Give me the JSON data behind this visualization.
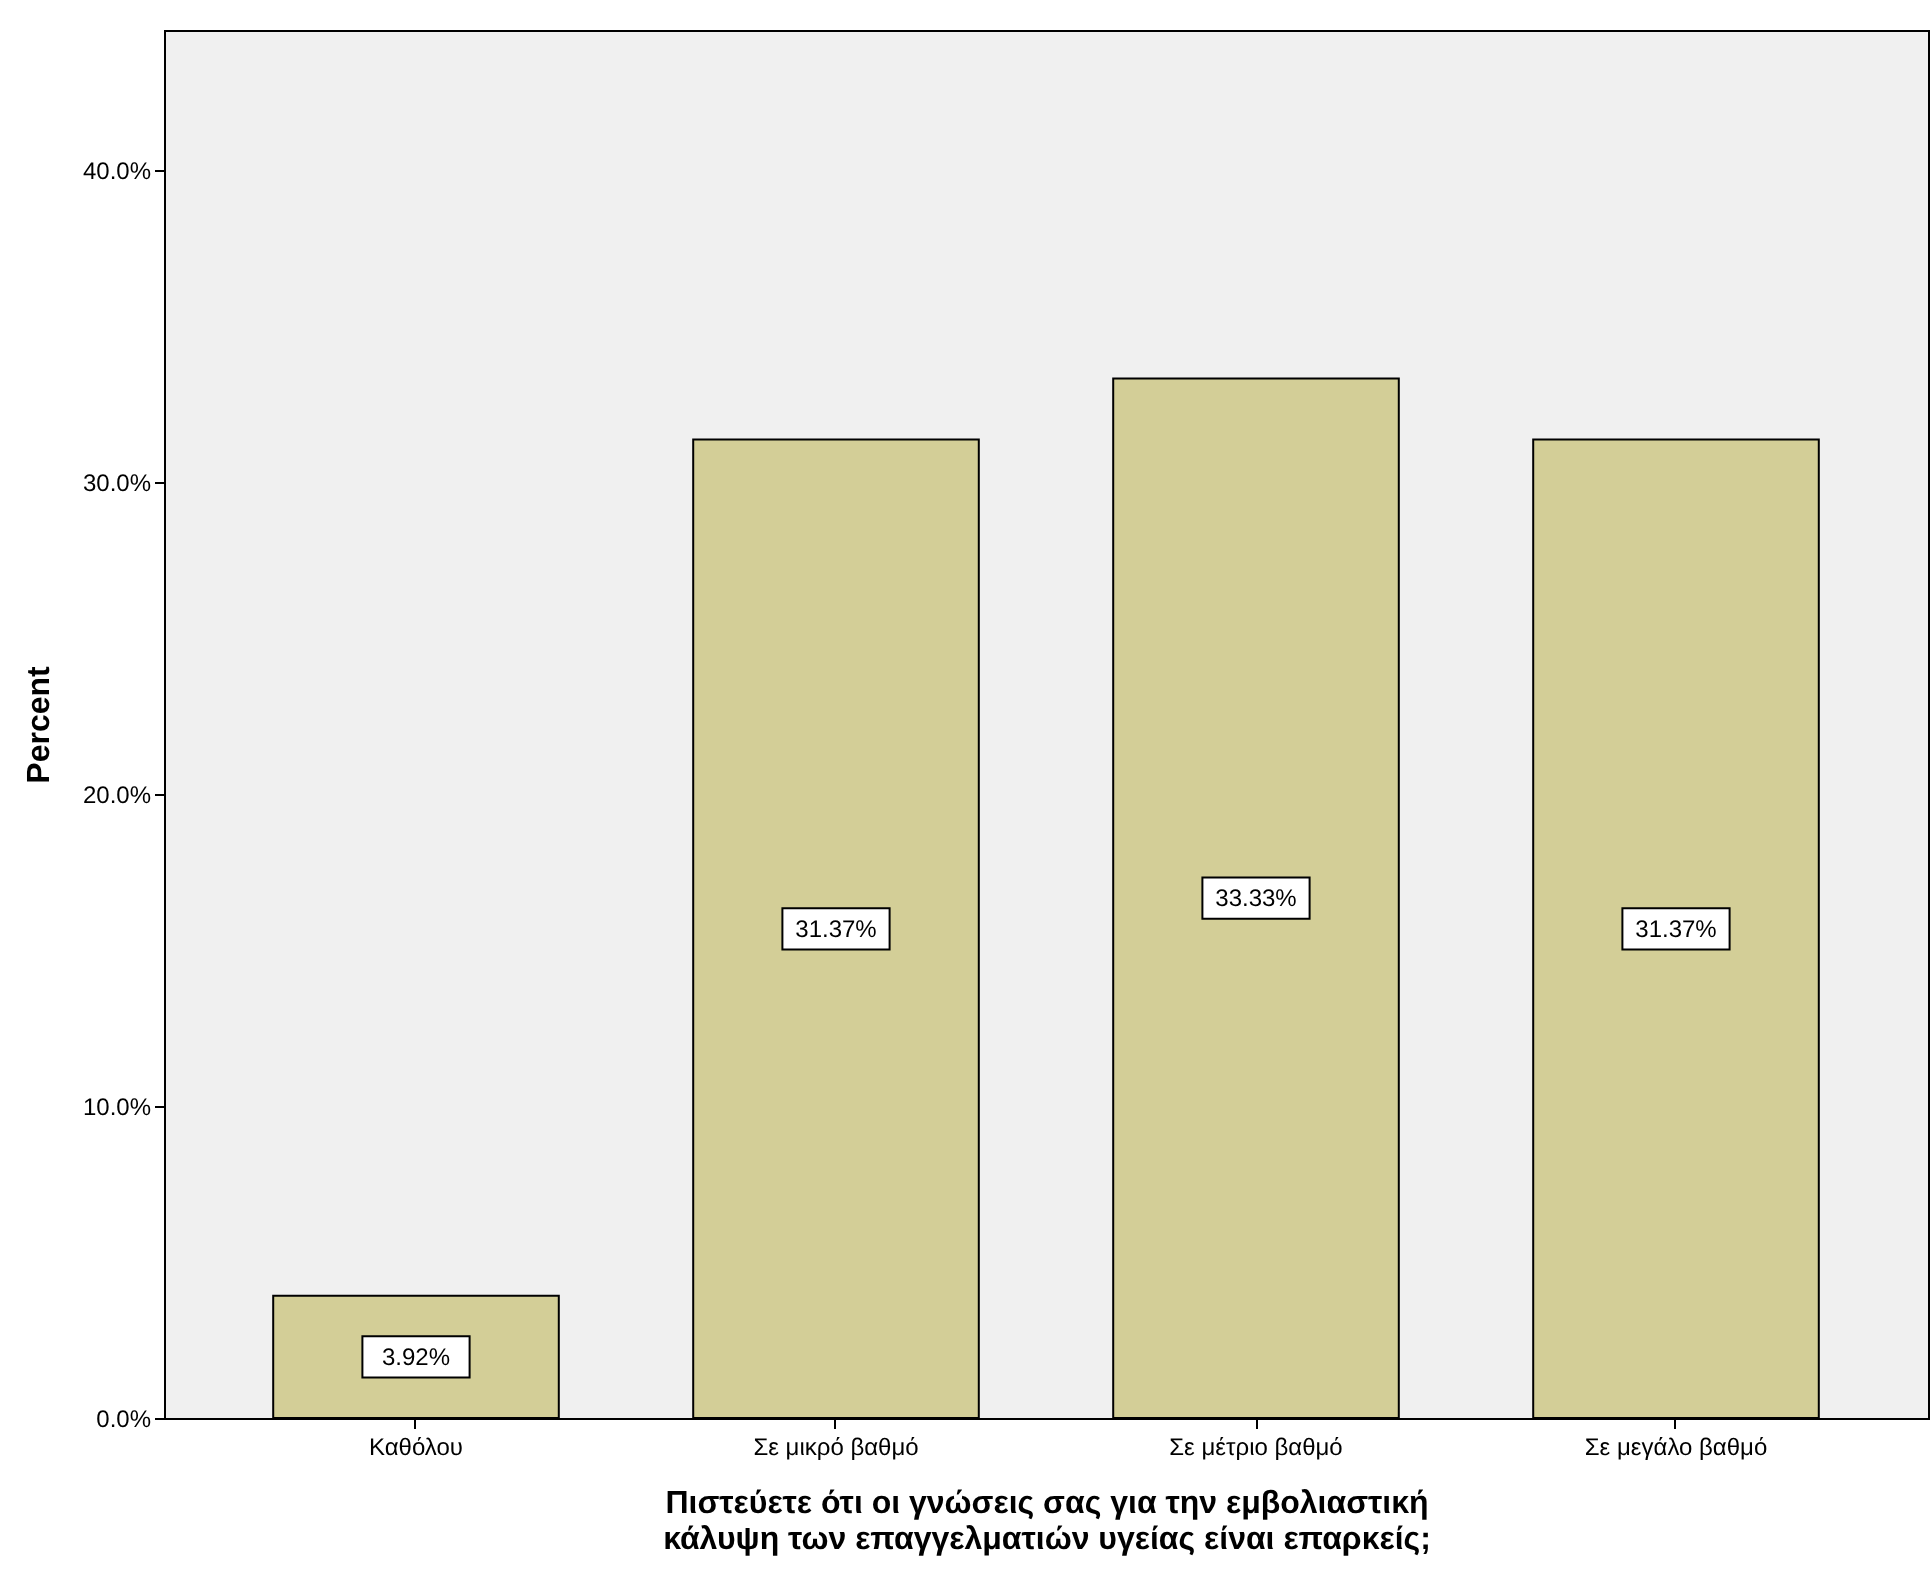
{
  "chart_data": {
    "type": "bar",
    "xlabel": "Πιστεύετε ότι οι γνώσεις σας για την εμβολιαστική κάλυψη των επαγγελματιών υγείας είναι επαρκείς;",
    "ylabel": "Percent",
    "categories": [
      "Καθόλου",
      "Σε μικρό βαθμό",
      "Σε μέτριο βαθμό",
      "Σε μεγάλο βαθμό"
    ],
    "values": [
      3.92,
      31.37,
      33.33,
      31.37
    ],
    "value_labels": [
      "3.92%",
      "31.37%",
      "33.33%",
      "31.37%"
    ],
    "color": "#d3ce97",
    "ylim": [
      0,
      44.5
    ],
    "yticks": [
      {
        "value": 0,
        "label": "0.0%"
      },
      {
        "value": 10,
        "label": "10.0%"
      },
      {
        "value": 20,
        "label": "20.0%"
      },
      {
        "value": 30,
        "label": "30.0%"
      },
      {
        "value": 40,
        "label": "40.0%"
      }
    ],
    "grid": false
  }
}
